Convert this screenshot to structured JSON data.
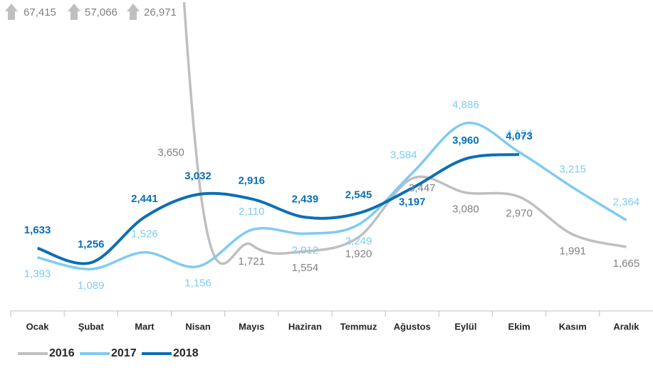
{
  "chart_data": {
    "type": "line",
    "categories": [
      "Ocak",
      "Şubat",
      "Mart",
      "Nisan",
      "Mayıs",
      "Haziran",
      "Temmuz",
      "Ağustos",
      "Eylül",
      "Ekim",
      "Kasım",
      "Aralık"
    ],
    "series": [
      {
        "name": "2016",
        "color": "#bfbfbf",
        "label_color": "#808080",
        "values": [
          67415,
          57066,
          26971,
          3650,
          1721,
          1554,
          1920,
          3447,
          3080,
          2970,
          1991,
          1665
        ],
        "value_labels": [
          "67,415",
          "57,066",
          "26,971",
          "3,650",
          "1,721",
          "1,554",
          "1,920",
          "3,447",
          "3,080",
          "2,970",
          "1,991",
          "1,665"
        ]
      },
      {
        "name": "2017",
        "color": "#7fcbf3",
        "label_color": "#7fcbf3",
        "values": [
          1393,
          1089,
          1526,
          1156,
          2110,
          2012,
          2249,
          3584,
          4886,
          4134,
          3215,
          2364
        ],
        "value_labels": [
          "1,393",
          "1,089",
          "1,526",
          "1,156",
          "2,110",
          "2,012",
          "2,249",
          "3,584",
          "4,886",
          "4,134",
          "3,215",
          "2,364"
        ]
      },
      {
        "name": "2018",
        "color": "#0b6fb5",
        "label_color": "#0b6fb5",
        "values": [
          1633,
          1256,
          2441,
          3032,
          2916,
          2439,
          2545,
          3197,
          3960,
          4073,
          null,
          null
        ],
        "value_labels": [
          "1,633",
          "1,256",
          "2,441",
          "3,032",
          "2,916",
          "2,439",
          "2,545",
          "3,197",
          "3,960",
          "4,073",
          null,
          null
        ]
      }
    ],
    "ylim": [
      0,
      8000
    ]
  }
}
